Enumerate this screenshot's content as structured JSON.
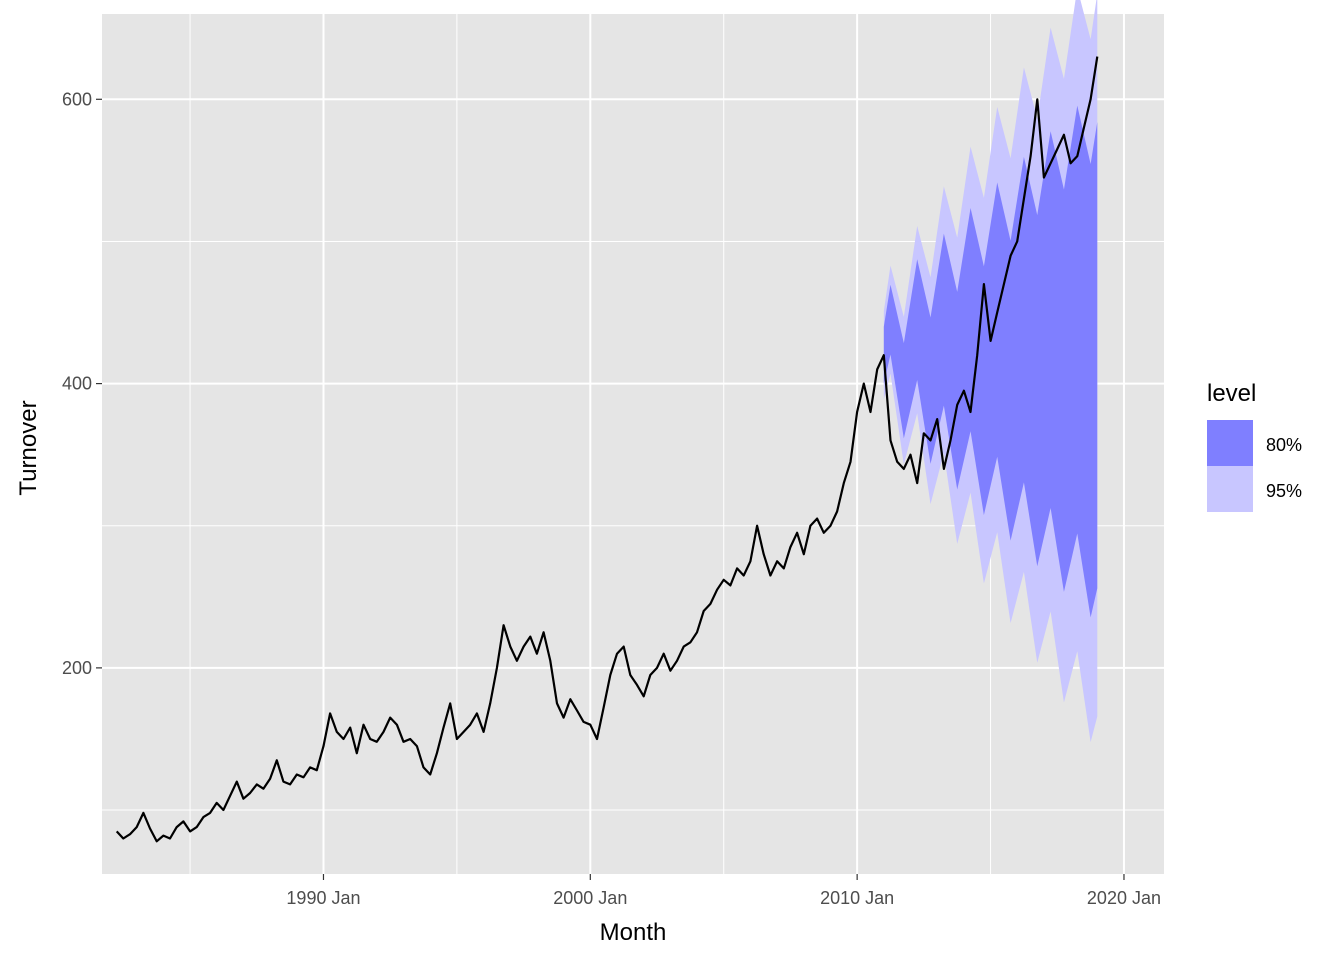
{
  "chart_data": {
    "type": "line",
    "xlabel": "Month",
    "ylabel": "Turnover",
    "x_range": [
      1981.7,
      2021.5
    ],
    "ylim": [
      55,
      660
    ],
    "x_ticks": [
      {
        "value": 1990,
        "label": "1990 Jan"
      },
      {
        "value": 2000,
        "label": "2000 Jan"
      },
      {
        "value": 2010,
        "label": "2010 Jan"
      },
      {
        "value": 2020,
        "label": "2020 Jan"
      }
    ],
    "y_ticks": [
      {
        "value": 200,
        "label": "200"
      },
      {
        "value": 400,
        "label": "400"
      },
      {
        "value": 600,
        "label": "600"
      }
    ],
    "x_minor_gridlines": [
      1985,
      1995,
      2005,
      2015
    ],
    "y_minor_gridlines": [
      100,
      300,
      500
    ],
    "grid": true,
    "background_color": "#e5e5e5",
    "legend": {
      "title": "level",
      "position": "right",
      "items": [
        {
          "label": "80%",
          "color": "#7f7fff"
        },
        {
          "label": "95%",
          "color": "#c8c6ff"
        }
      ]
    },
    "series": [
      {
        "type": "line",
        "color": "#000000",
        "points": [
          [
            1982.25,
            85
          ],
          [
            1982.5,
            80
          ],
          [
            1982.75,
            83
          ],
          [
            1983.0,
            88
          ],
          [
            1983.25,
            98
          ],
          [
            1983.5,
            87
          ],
          [
            1983.75,
            78
          ],
          [
            1984.0,
            82
          ],
          [
            1984.25,
            80
          ],
          [
            1984.5,
            88
          ],
          [
            1984.75,
            92
          ],
          [
            1985.0,
            85
          ],
          [
            1985.25,
            88
          ],
          [
            1985.5,
            95
          ],
          [
            1985.75,
            98
          ],
          [
            1986.0,
            105
          ],
          [
            1986.25,
            100
          ],
          [
            1986.5,
            110
          ],
          [
            1986.75,
            120
          ],
          [
            1987.0,
            108
          ],
          [
            1987.25,
            112
          ],
          [
            1987.5,
            118
          ],
          [
            1987.75,
            115
          ],
          [
            1988.0,
            122
          ],
          [
            1988.25,
            135
          ],
          [
            1988.5,
            120
          ],
          [
            1988.75,
            118
          ],
          [
            1989.0,
            125
          ],
          [
            1989.25,
            123
          ],
          [
            1989.5,
            130
          ],
          [
            1989.75,
            128
          ],
          [
            1990.0,
            145
          ],
          [
            1990.25,
            168
          ],
          [
            1990.5,
            155
          ],
          [
            1990.75,
            150
          ],
          [
            1991.0,
            158
          ],
          [
            1991.25,
            140
          ],
          [
            1991.5,
            160
          ],
          [
            1991.75,
            150
          ],
          [
            1992.0,
            148
          ],
          [
            1992.25,
            155
          ],
          [
            1992.5,
            165
          ],
          [
            1992.75,
            160
          ],
          [
            1993.0,
            148
          ],
          [
            1993.25,
            150
          ],
          [
            1993.5,
            145
          ],
          [
            1993.75,
            130
          ],
          [
            1994.0,
            125
          ],
          [
            1994.25,
            140
          ],
          [
            1994.5,
            158
          ],
          [
            1994.75,
            175
          ],
          [
            1995.0,
            150
          ],
          [
            1995.25,
            155
          ],
          [
            1995.5,
            160
          ],
          [
            1995.75,
            168
          ],
          [
            1996.0,
            155
          ],
          [
            1996.25,
            175
          ],
          [
            1996.5,
            200
          ],
          [
            1996.75,
            230
          ],
          [
            1997.0,
            215
          ],
          [
            1997.25,
            205
          ],
          [
            1997.5,
            215
          ],
          [
            1997.75,
            222
          ],
          [
            1998.0,
            210
          ],
          [
            1998.25,
            225
          ],
          [
            1998.5,
            205
          ],
          [
            1998.75,
            175
          ],
          [
            1999.0,
            165
          ],
          [
            1999.25,
            178
          ],
          [
            1999.5,
            170
          ],
          [
            1999.75,
            162
          ],
          [
            2000.0,
            160
          ],
          [
            2000.25,
            150
          ],
          [
            2000.5,
            172
          ],
          [
            2000.75,
            195
          ],
          [
            2001.0,
            210
          ],
          [
            2001.25,
            215
          ],
          [
            2001.5,
            195
          ],
          [
            2001.75,
            188
          ],
          [
            2002.0,
            180
          ],
          [
            2002.25,
            195
          ],
          [
            2002.5,
            200
          ],
          [
            2002.75,
            210
          ],
          [
            2003.0,
            198
          ],
          [
            2003.25,
            205
          ],
          [
            2003.5,
            215
          ],
          [
            2003.75,
            218
          ],
          [
            2004.0,
            225
          ],
          [
            2004.25,
            240
          ],
          [
            2004.5,
            245
          ],
          [
            2004.75,
            255
          ],
          [
            2005.0,
            262
          ],
          [
            2005.25,
            258
          ],
          [
            2005.5,
            270
          ],
          [
            2005.75,
            265
          ],
          [
            2006.0,
            275
          ],
          [
            2006.25,
            300
          ],
          [
            2006.5,
            280
          ],
          [
            2006.75,
            265
          ],
          [
            2007.0,
            275
          ],
          [
            2007.25,
            270
          ],
          [
            2007.5,
            285
          ],
          [
            2007.75,
            295
          ],
          [
            2008.0,
            280
          ],
          [
            2008.25,
            300
          ],
          [
            2008.5,
            305
          ],
          [
            2008.75,
            295
          ],
          [
            2009.0,
            300
          ],
          [
            2009.25,
            310
          ],
          [
            2009.5,
            330
          ],
          [
            2009.75,
            345
          ],
          [
            2010.0,
            380
          ],
          [
            2010.25,
            400
          ],
          [
            2010.5,
            380
          ],
          [
            2010.75,
            410
          ],
          [
            2011.0,
            420
          ],
          [
            2011.25,
            360
          ],
          [
            2011.5,
            345
          ],
          [
            2011.75,
            340
          ],
          [
            2012.0,
            350
          ],
          [
            2012.25,
            330
          ],
          [
            2012.5,
            365
          ],
          [
            2012.75,
            360
          ],
          [
            2013.0,
            375
          ],
          [
            2013.25,
            340
          ],
          [
            2013.5,
            360
          ],
          [
            2013.75,
            385
          ],
          [
            2014.0,
            395
          ],
          [
            2014.25,
            380
          ],
          [
            2014.5,
            420
          ],
          [
            2014.75,
            470
          ],
          [
            2015.0,
            430
          ],
          [
            2015.25,
            450
          ],
          [
            2015.5,
            470
          ],
          [
            2015.75,
            490
          ],
          [
            2016.0,
            500
          ],
          [
            2016.25,
            530
          ],
          [
            2016.5,
            560
          ],
          [
            2016.75,
            600
          ],
          [
            2017.0,
            545
          ],
          [
            2017.25,
            555
          ],
          [
            2017.5,
            565
          ],
          [
            2017.75,
            575
          ],
          [
            2018.0,
            555
          ],
          [
            2018.25,
            560
          ],
          [
            2018.5,
            580
          ],
          [
            2018.75,
            600
          ],
          [
            2019.0,
            630
          ]
        ]
      }
    ]
  }
}
